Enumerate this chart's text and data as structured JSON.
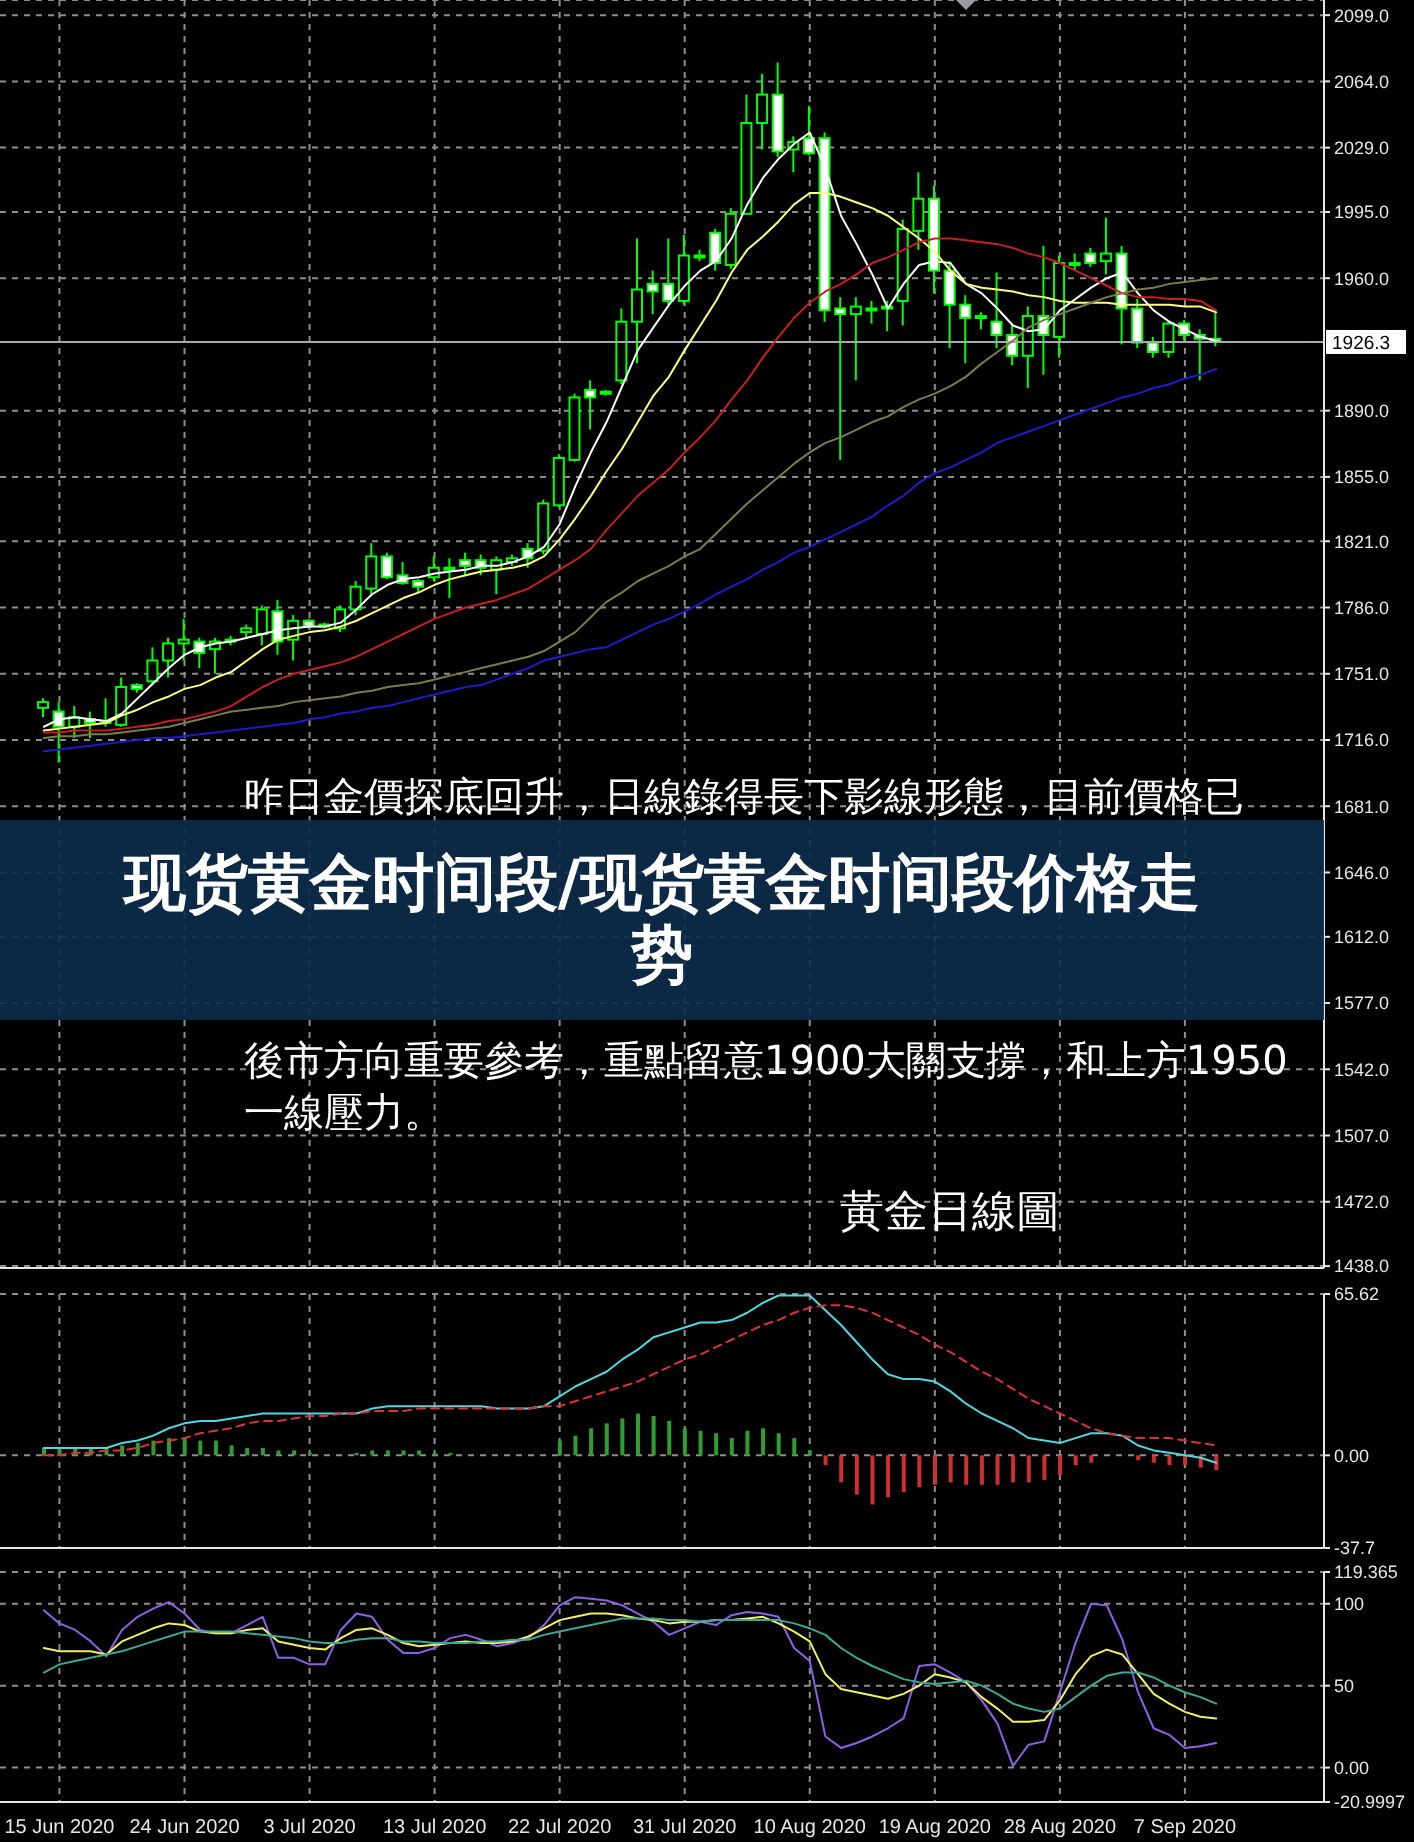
{
  "chart_data": [
    {
      "type": "candlestick",
      "title": "现货黄金时间段/现货黄金时间段价格走势",
      "categories": [
        null,
        null,
        null,
        null,
        null,
        null,
        null,
        null,
        null,
        null,
        null,
        null,
        null,
        null,
        null,
        null,
        null,
        null,
        null,
        null,
        null,
        null,
        null,
        null,
        null,
        null,
        null,
        null,
        null,
        null,
        null,
        null,
        null,
        null,
        null,
        null,
        null,
        null,
        null,
        null,
        null,
        null,
        null,
        null,
        null,
        null,
        null,
        null,
        null,
        null,
        null,
        null,
        null,
        null,
        null,
        null,
        null,
        null,
        null,
        null,
        null,
        null,
        null,
        null,
        null,
        null,
        null,
        null,
        null,
        null,
        null,
        null,
        null,
        null,
        null,
        null
      ],
      "color": "#00ff00",
      "ohlc": [
        [
          1733,
          1738,
          1728,
          1736
        ],
        [
          1731,
          1736,
          1704,
          1723
        ],
        [
          1723,
          1734,
          1717,
          1728
        ],
        [
          1727,
          1731,
          1717,
          1725
        ],
        [
          1725,
          1738,
          1723,
          1726
        ],
        [
          1724,
          1749,
          1723,
          1744
        ],
        [
          1745,
          1746,
          1741,
          1743
        ],
        [
          1747,
          1765,
          1745,
          1758
        ],
        [
          1758,
          1770,
          1749,
          1767
        ],
        [
          1767,
          1780,
          1758,
          1769
        ],
        [
          1768,
          1770,
          1754,
          1762
        ],
        [
          1764,
          1770,
          1751,
          1768
        ],
        [
          1768,
          1771,
          1766,
          1769
        ],
        [
          1773,
          1777,
          1770,
          1775
        ],
        [
          1772,
          1787,
          1766,
          1785
        ],
        [
          1784,
          1790,
          1761,
          1768
        ],
        [
          1769,
          1782,
          1758,
          1779
        ],
        [
          1779,
          1780,
          1775,
          1776
        ],
        [
          1777,
          1778,
          1775,
          1777
        ],
        [
          1775,
          1787,
          1773,
          1785
        ],
        [
          1785,
          1800,
          1782,
          1797
        ],
        [
          1796,
          1820,
          1793,
          1813
        ],
        [
          1813,
          1815,
          1801,
          1802
        ],
        [
          1803,
          1810,
          1798,
          1799
        ],
        [
          1800,
          1801,
          1794,
          1797
        ],
        [
          1802,
          1813,
          1800,
          1807
        ],
        [
          1806,
          1812,
          1791,
          1807
        ],
        [
          1811,
          1815,
          1803,
          1808
        ],
        [
          1811,
          1814,
          1803,
          1807
        ],
        [
          1806,
          1813,
          1793,
          1811
        ],
        [
          1810,
          1814,
          1808,
          1812
        ],
        [
          1817,
          1820,
          1807,
          1812
        ],
        [
          1816,
          1843,
          1814,
          1841
        ],
        [
          1840,
          1867,
          1839,
          1865
        ],
        [
          1864,
          1899,
          1863,
          1897
        ],
        [
          1901,
          1906,
          1880,
          1897
        ],
        [
          1899,
          1901,
          1898,
          1900
        ],
        [
          1906,
          1944,
          1904,
          1937
        ],
        [
          1937,
          1981,
          1915,
          1954
        ],
        [
          1957,
          1964,
          1941,
          1953
        ],
        [
          1957,
          1981,
          1946,
          1948
        ],
        [
          1948,
          1983,
          1946,
          1972
        ],
        [
          1971,
          1975,
          1969,
          1972
        ],
        [
          1984,
          1986,
          1964,
          1968
        ],
        [
          1967,
          1997,
          1965,
          1994
        ],
        [
          1994,
          2057,
          1994,
          2042
        ],
        [
          2042,
          2068,
          2028,
          2057
        ],
        [
          2057,
          2074,
          2024,
          2027
        ],
        [
          2028,
          2035,
          2016,
          2032
        ],
        [
          2034,
          2051,
          2025,
          2026
        ],
        [
          2034,
          2037,
          1937,
          1943
        ],
        [
          1944,
          1950,
          1864,
          1941
        ],
        [
          1941,
          1950,
          1906,
          1945
        ],
        [
          1944,
          1948,
          1936,
          1944
        ],
        [
          1944,
          1948,
          1932,
          1945
        ],
        [
          1948,
          1991,
          1935,
          1986
        ],
        [
          1985,
          2016,
          1975,
          2002
        ],
        [
          2002,
          2009,
          1952,
          1964
        ],
        [
          1964,
          1969,
          1923,
          1946
        ],
        [
          1946,
          1951,
          1915,
          1939
        ],
        [
          1940,
          1942,
          1933,
          1940
        ],
        [
          1937,
          1963,
          1923,
          1930
        ],
        [
          1930,
          1936,
          1914,
          1919
        ],
        [
          1919,
          1945,
          1902,
          1940
        ],
        [
          1940,
          1977,
          1909,
          1930
        ],
        [
          1929,
          1972,
          1918,
          1968
        ],
        [
          1968,
          1973,
          1964,
          1968
        ],
        [
          1973,
          1976,
          1966,
          1968
        ],
        [
          1969,
          1992,
          1962,
          1973
        ],
        [
          1973,
          1977,
          1925,
          1944
        ],
        [
          1944,
          1949,
          1923,
          1926
        ],
        [
          1926,
          1929,
          1918,
          1921
        ],
        [
          1921,
          1938,
          1918,
          1936
        ],
        [
          1936,
          1938,
          1927,
          1930
        ],
        [
          1930,
          1933,
          1906,
          1928
        ],
        [
          1928,
          1942,
          1924,
          1926.3
        ]
      ],
      "series": [
        {
          "type": "line",
          "color": "#ffffff",
          "values": [
            1723,
            1727,
            1728,
            1727,
            1726,
            1730,
            1738,
            1746,
            1754,
            1761,
            1765,
            1767,
            1768,
            1770,
            1772,
            1774,
            1775,
            1776,
            1776,
            1778,
            1785,
            1793,
            1798,
            1801,
            1802,
            1804,
            1805,
            1806,
            1808,
            1808,
            1810,
            1813,
            1818,
            1830,
            1850,
            1868,
            1884,
            1903,
            1922,
            1934,
            1946,
            1956,
            1964,
            1969,
            1981,
            1999,
            2013,
            2023,
            2031,
            2037,
            2018,
            1993,
            1978,
            1962,
            1944,
            1957,
            1967,
            1969,
            1968,
            1957,
            1952,
            1944,
            1935,
            1932,
            1933,
            1943,
            1949,
            1955,
            1960,
            1963,
            1952,
            1943,
            1937,
            1933,
            1929,
            1927
          ]
        },
        {
          "type": "line",
          "color": "#ffff80",
          "values": [
            1721,
            1722,
            1723,
            1724,
            1725,
            1729,
            1732,
            1736,
            1739,
            1743,
            1745,
            1749,
            1752,
            1758,
            1764,
            1769,
            1771,
            1773,
            1774,
            1776,
            1779,
            1783,
            1787,
            1791,
            1794,
            1798,
            1801,
            1803,
            1805,
            1806,
            1807,
            1809,
            1813,
            1822,
            1833,
            1845,
            1858,
            1870,
            1884,
            1898,
            1908,
            1922,
            1935,
            1948,
            1963,
            1975,
            1982,
            1990,
            1999,
            2005,
            2005,
            2003,
            2000,
            1997,
            1993,
            1987,
            1981,
            1974,
            1964,
            1957,
            1955,
            1954,
            1953,
            1951,
            1950,
            1948,
            1947,
            1947,
            1947,
            1946,
            1946,
            1946,
            1946,
            1945,
            1945,
            1942
          ]
        },
        {
          "type": "line",
          "color": "#c81e1e",
          "values": [
            1720,
            1720,
            1721,
            1721,
            1721,
            1722,
            1723,
            1724,
            1726,
            1727,
            1729,
            1731,
            1734,
            1739,
            1744,
            1748,
            1751,
            1753,
            1755,
            1757,
            1760,
            1764,
            1768,
            1772,
            1776,
            1780,
            1783,
            1786,
            1788,
            1790,
            1793,
            1796,
            1801,
            1806,
            1811,
            1817,
            1827,
            1836,
            1845,
            1852,
            1859,
            1868,
            1876,
            1885,
            1896,
            1906,
            1918,
            1929,
            1939,
            1947,
            1953,
            1957,
            1962,
            1968,
            1971,
            1975,
            1979,
            1981,
            1981,
            1980,
            1979,
            1978,
            1976,
            1973,
            1971,
            1968,
            1964,
            1960,
            1956,
            1952,
            1950,
            1950,
            1949,
            1949,
            1948,
            1943
          ]
        },
        {
          "type": "line",
          "color": "#7c7c48",
          "values": [
            1717,
            1718,
            1718,
            1719,
            1719,
            1720,
            1721,
            1722,
            1723,
            1725,
            1727,
            1729,
            1731,
            1732,
            1733,
            1734,
            1736,
            1737,
            1738,
            1739,
            1741,
            1742,
            1744,
            1745,
            1746,
            1748,
            1750,
            1752,
            1754,
            1756,
            1758,
            1760,
            1763,
            1768,
            1773,
            1781,
            1789,
            1794,
            1800,
            1804,
            1808,
            1813,
            1817,
            1825,
            1833,
            1841,
            1848,
            1855,
            1862,
            1868,
            1873,
            1876,
            1880,
            1884,
            1887,
            1892,
            1896,
            1899,
            1903,
            1908,
            1915,
            1921,
            1927,
            1934,
            1938,
            1941,
            1944,
            1947,
            1950,
            1952,
            1954,
            1955,
            1957,
            1958,
            1959,
            1960
          ]
        },
        {
          "type": "line",
          "color": "#1c1ccf",
          "values": [
            1710,
            1711,
            1712,
            1713,
            1714,
            1715,
            1716,
            1717,
            1717,
            1718,
            1719,
            1720,
            1721,
            1722,
            1723,
            1724,
            1725,
            1727,
            1728,
            1730,
            1731,
            1733,
            1734,
            1736,
            1738,
            1740,
            1742,
            1744,
            1745,
            1748,
            1751,
            1754,
            1758,
            1760,
            1762,
            1764,
            1765,
            1769,
            1773,
            1777,
            1780,
            1784,
            1788,
            1793,
            1797,
            1801,
            1806,
            1810,
            1815,
            1818,
            1822,
            1826,
            1830,
            1834,
            1840,
            1845,
            1852,
            1857,
            1860,
            1864,
            1868,
            1873,
            1876,
            1879,
            1882,
            1885,
            1888,
            1891,
            1894,
            1897,
            1899,
            1902,
            1904,
            1907,
            1909,
            1912
          ]
        }
      ],
      "ylim": [
        1437,
        2107
      ],
      "yticks": [
        {
          "value": 2099,
          "label": "2099.0"
        },
        {
          "value": 2064,
          "label": "2064.0"
        },
        {
          "value": 2029,
          "label": "2029.0"
        },
        {
          "value": 1995,
          "label": "1995.0"
        },
        {
          "value": 1960,
          "label": "1960.0"
        },
        {
          "value": 1890,
          "label": "1890.0"
        },
        {
          "value": 1855,
          "label": "1855.0"
        },
        {
          "value": 1821,
          "label": "1821.0"
        },
        {
          "value": 1786,
          "label": "1786.0"
        },
        {
          "value": 1751,
          "label": "1751.0"
        },
        {
          "value": 1716,
          "label": "1716.0"
        },
        {
          "value": 1681,
          "label": "1681.0"
        },
        {
          "value": 1646,
          "label": "1646.0"
        },
        {
          "value": 1612,
          "label": "1612.0"
        },
        {
          "value": 1577,
          "label": "1577.0"
        },
        {
          "value": 1542,
          "label": "1542.0"
        },
        {
          "value": 1507,
          "label": "1507.0"
        },
        {
          "value": 1472,
          "label": "1472.0"
        },
        {
          "value": 1438,
          "label": "1438.0"
        }
      ],
      "ref_lines": [
        {
          "axis": "y",
          "value": 1926.3,
          "label": "1926.3",
          "color": "#a8a8b0"
        }
      ],
      "annotations": [
        "昨日金價探底回升，日線錄得長下影線形態，目前價格已",
        "後市方向重要參考，重點留意1900大關支撐，和上方1950",
        "一線壓力。",
        "黃金日線圖"
      ],
      "grid": true,
      "tick_labels": "y"
    },
    {
      "type": "bar",
      "categories": [
        null,
        null,
        null,
        null,
        null,
        null,
        null,
        null,
        null,
        null,
        null,
        null,
        null,
        null,
        null,
        null,
        null,
        null,
        null,
        null,
        null,
        null,
        null,
        null,
        null,
        null,
        null,
        null,
        null,
        null,
        null,
        null,
        null,
        null,
        null,
        null,
        null,
        null,
        null,
        null,
        null,
        null,
        null,
        null,
        null,
        null,
        null,
        null,
        null,
        null,
        null,
        null,
        null,
        null,
        null,
        null,
        null,
        null,
        null,
        null,
        null,
        null,
        null,
        null,
        null,
        null,
        null,
        null,
        null,
        null,
        null,
        null,
        null,
        null,
        null,
        null
      ],
      "series": [
        {
          "type": "bar",
          "values": [
            3,
            3,
            3,
            3,
            3,
            4,
            5,
            6,
            7,
            7,
            6,
            6,
            4,
            3,
            3,
            2,
            2,
            1,
            null,
            null,
            1,
            2,
            2,
            2,
            2,
            1,
            1,
            null,
            null,
            null,
            null,
            null,
            null,
            6,
            8,
            11,
            13,
            15,
            17,
            16,
            14,
            11,
            10,
            9,
            7,
            10,
            11,
            9,
            7,
            2,
            -4,
            -11,
            -16,
            -20,
            -17,
            -15,
            -13,
            -12,
            -11,
            -12,
            -12,
            -12,
            -11,
            -11,
            -10,
            -8,
            -4,
            -3,
            null,
            null,
            -2,
            -3,
            -4,
            -4,
            -5,
            -6
          ],
          "colors": [
            "#2e9e2e",
            "#2e9e2e",
            "#2e9e2e",
            "#2e9e2e",
            "#2e9e2e",
            "#2e9e2e",
            "#2e9e2e",
            "#2e9e2e",
            "#2e9e2e",
            "#2e9e2e",
            "#2e9e2e",
            "#2e9e2e",
            "#2e9e2e",
            "#2e9e2e",
            "#2e9e2e",
            "#2e9e2e",
            "#2e9e2e",
            "#2e9e2e",
            "#2e9e2e",
            "#2e9e2e",
            "#2e9e2e",
            "#2e9e2e",
            "#2e9e2e",
            "#2e9e2e",
            "#2e9e2e",
            "#2e9e2e",
            "#2e9e2e",
            "#2e9e2e",
            "#2e9e2e",
            "#2e9e2e",
            "#2e9e2e",
            "#2e9e2e",
            "#2e9e2e",
            "#2e9e2e",
            "#2e9e2e",
            "#2e9e2e",
            "#2e9e2e",
            "#2e9e2e",
            "#2e9e2e",
            "#2e9e2e",
            "#2e9e2e",
            "#2e9e2e",
            "#2e9e2e",
            "#2e9e2e",
            "#2e9e2e",
            "#2e9e2e",
            "#2e9e2e",
            "#2e9e2e",
            "#2e9e2e",
            "#2e9e2e",
            "#d0302c",
            "#d0302c",
            "#d0302c",
            "#d0302c",
            "#d0302c",
            "#d0302c",
            "#d0302c",
            "#d0302c",
            "#d0302c",
            "#d0302c",
            "#d0302c",
            "#d0302c",
            "#d0302c",
            "#d0302c",
            "#d0302c",
            "#d0302c",
            "#d0302c",
            "#d0302c",
            "#d0302c",
            "#d0302c",
            "#d0302c",
            "#d0302c",
            "#d0302c",
            "#d0302c",
            "#d0302c",
            "#d0302c"
          ]
        },
        {
          "type": "line",
          "color": "#4fd8e0",
          "values": [
            3,
            3,
            3,
            3,
            3,
            5,
            6,
            8,
            11,
            13,
            14,
            14,
            15,
            16,
            17,
            17,
            17,
            17,
            17,
            17,
            17,
            19,
            20,
            20,
            20,
            20,
            20,
            20,
            20,
            19,
            19,
            19,
            20,
            24,
            28,
            31,
            34,
            39,
            43,
            48,
            50,
            52,
            54,
            54,
            55,
            58,
            62,
            65,
            65,
            65,
            59,
            53,
            46,
            39,
            33,
            31,
            31,
            30,
            26,
            21,
            17,
            14,
            11,
            7,
            6,
            5,
            7,
            9,
            9,
            8,
            4,
            2,
            1,
            0,
            -1,
            -3
          ]
        },
        {
          "type": "line",
          "color": "#e03232",
          "line_style": "dashed",
          "values": [
            0,
            0,
            1,
            1,
            2,
            2,
            3,
            5,
            6,
            7,
            9,
            10,
            11,
            13,
            14,
            14,
            15,
            16,
            16,
            17,
            17,
            18,
            18,
            18,
            19,
            19,
            19,
            19,
            19,
            19,
            19,
            19,
            20,
            20,
            22,
            24,
            26,
            28,
            30,
            33,
            36,
            39,
            41,
            44,
            47,
            50,
            53,
            55,
            58,
            60,
            61,
            61,
            60,
            58,
            55,
            52,
            49,
            45,
            42,
            38,
            34,
            31,
            27,
            23,
            20,
            17,
            14,
            11,
            9,
            8,
            7,
            7,
            7,
            6,
            5,
            4
          ]
        }
      ],
      "ylim": [
        -37.7,
        65.62
      ],
      "yticks": [
        65.62,
        {
          "value": 0,
          "label": "0.00"
        },
        -37.7
      ],
      "grid": true,
      "tick_labels": "y"
    },
    {
      "type": "line",
      "categories": [
        null,
        "15 Jun 2020",
        null,
        null,
        null,
        null,
        null,
        null,
        null,
        "24 Jun 2020",
        null,
        null,
        null,
        null,
        null,
        null,
        null,
        "3 Jul 2020",
        null,
        null,
        null,
        null,
        null,
        null,
        null,
        "13 Jul 2020",
        null,
        null,
        null,
        null,
        null,
        null,
        null,
        "22 Jul 2020",
        null,
        null,
        null,
        null,
        null,
        null,
        null,
        "31 Jul 2020",
        null,
        null,
        null,
        null,
        null,
        null,
        null,
        "10 Aug 2020",
        null,
        null,
        null,
        null,
        null,
        null,
        null,
        "19 Aug 2020",
        null,
        null,
        null,
        null,
        null,
        null,
        null,
        "28 Aug 2020",
        null,
        null,
        null,
        null,
        null,
        null,
        null,
        "7 Sep 2020",
        null,
        null
      ],
      "series": [
        {
          "color": "#8f5fe8",
          "values": [
            96,
            88,
            84,
            77,
            68,
            84,
            92,
            97,
            101,
            94,
            84,
            82,
            82,
            87,
            92,
            67,
            67,
            63,
            63,
            84,
            94,
            92,
            78,
            70,
            70,
            73,
            79,
            81,
            78,
            74,
            76,
            79,
            87,
            99,
            104,
            103,
            102,
            99,
            94,
            89,
            81,
            85,
            89,
            87,
            93,
            95,
            94,
            92,
            73,
            65,
            19,
            12,
            15,
            19,
            24,
            30,
            62,
            63,
            58,
            52,
            41,
            27,
            1,
            14,
            16,
            46,
            76,
            100,
            99,
            78,
            46,
            24,
            20,
            12,
            13,
            15
          ]
        },
        {
          "color": "#f0f060",
          "values": [
            73,
            71,
            71,
            71,
            69,
            77,
            81,
            85,
            88,
            87,
            83,
            82,
            82,
            84,
            85,
            77,
            75,
            73,
            72,
            79,
            84,
            85,
            81,
            76,
            74,
            75,
            76,
            77,
            76,
            76,
            77,
            80,
            85,
            90,
            92,
            94,
            94,
            93,
            91,
            90,
            88,
            89,
            89,
            90,
            90,
            91,
            92,
            88,
            83,
            77,
            57,
            48,
            46,
            44,
            42,
            45,
            50,
            57,
            55,
            52,
            43,
            36,
            28,
            28,
            29,
            41,
            57,
            68,
            72,
            69,
            57,
            45,
            39,
            34,
            31,
            30
          ]
        },
        {
          "color": "#3aa896",
          "values": [
            58,
            63,
            65,
            67,
            69,
            71,
            74,
            77,
            80,
            83,
            83,
            83,
            83,
            82,
            81,
            80,
            79,
            77,
            76,
            76,
            78,
            79,
            79,
            77,
            77,
            76,
            76,
            76,
            77,
            77,
            78,
            78,
            81,
            83,
            85,
            87,
            89,
            91,
            91,
            91,
            90,
            90,
            89,
            90,
            90,
            90,
            90,
            90,
            88,
            85,
            81,
            73,
            67,
            62,
            58,
            54,
            52,
            51,
            52,
            53,
            50,
            45,
            39,
            36,
            34,
            36,
            43,
            50,
            56,
            58,
            58,
            55,
            50,
            46,
            43,
            39
          ]
        }
      ],
      "ylim": [
        -20.9997,
        119.365
      ],
      "yticks": [
        119.365,
        100,
        50,
        {
          "value": 0,
          "label": "0.00"
        },
        -20.9997
      ],
      "grid": true
    }
  ]
}
